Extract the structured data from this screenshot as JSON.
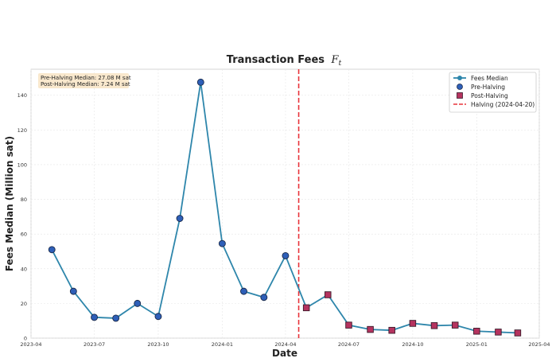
{
  "chart_data": {
    "type": "line",
    "title": "Transaction Fees",
    "title_symbol": "F",
    "title_subscript": "t",
    "xlabel": "Date",
    "ylabel": "Fees Median (Million sat)",
    "xlim": [
      "2023-04-01",
      "2025-04-01"
    ],
    "ylim": [
      0,
      155
    ],
    "x_ticks": [
      "2023-04",
      "2023-07",
      "2023-10",
      "2024-01",
      "2024-04",
      "2024-07",
      "2024-10",
      "2025-01",
      "2025-04"
    ],
    "y_ticks": [
      0,
      20,
      40,
      60,
      80,
      100,
      120,
      140
    ],
    "grid": true,
    "legend_position": "top-right",
    "series": [
      {
        "name": "Fees Median",
        "kind": "line",
        "color": "#2e86ab",
        "x": [
          "2023-05-01",
          "2023-06-01",
          "2023-07-01",
          "2023-08-01",
          "2023-09-01",
          "2023-10-01",
          "2023-11-01",
          "2023-12-01",
          "2024-01-01",
          "2024-02-01",
          "2024-03-01",
          "2024-04-01",
          "2024-05-01",
          "2024-06-01",
          "2024-07-01",
          "2024-08-01",
          "2024-09-01",
          "2024-10-01",
          "2024-11-01",
          "2024-12-01",
          "2025-01-01",
          "2025-02-01",
          "2025-03-01"
        ],
        "values": [
          51,
          27,
          12,
          11.5,
          20,
          12.5,
          69,
          147.5,
          54.5,
          27,
          23.5,
          47.5,
          17.5,
          25,
          7.5,
          5,
          4.5,
          8.5,
          7.2,
          7.5,
          4,
          3.5,
          3
        ]
      },
      {
        "name": "Pre-Halving",
        "kind": "scatter",
        "marker": "circle",
        "color": "#2e5fb8",
        "x": [
          "2023-05-01",
          "2023-06-01",
          "2023-07-01",
          "2023-08-01",
          "2023-09-01",
          "2023-10-01",
          "2023-11-01",
          "2023-12-01",
          "2024-01-01",
          "2024-02-01",
          "2024-03-01",
          "2024-04-01"
        ],
        "values": [
          51,
          27,
          12,
          11.5,
          20,
          12.5,
          69,
          147.5,
          54.5,
          27,
          23.5,
          47.5
        ]
      },
      {
        "name": "Post-Halving",
        "kind": "scatter",
        "marker": "square",
        "color": "#b5335f",
        "x": [
          "2024-05-01",
          "2024-06-01",
          "2024-07-01",
          "2024-08-01",
          "2024-09-01",
          "2024-10-01",
          "2024-11-01",
          "2024-12-01",
          "2025-01-01",
          "2025-02-01",
          "2025-03-01"
        ],
        "values": [
          17.5,
          25,
          7.5,
          5,
          4.5,
          8.5,
          7.2,
          7.5,
          4,
          3.5,
          3
        ]
      }
    ],
    "vline": {
      "name": "Halving (2024-04-20)",
      "x": "2024-04-20",
      "color": "#e8333a",
      "style": "dashed"
    },
    "annotation": {
      "lines": [
        "Pre-Halving Median: 27.08 M sat",
        "Post-Halving Median: 7.24 M sat"
      ],
      "background": "#f8e4c4"
    }
  }
}
